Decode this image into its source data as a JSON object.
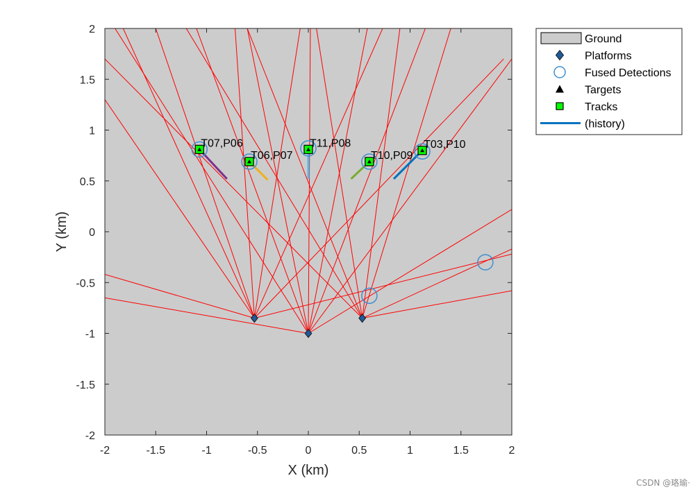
{
  "chart_data": {
    "type": "scatter",
    "title": "",
    "xlabel": "X (km)",
    "ylabel": "Y (km)",
    "xlim": [
      -2,
      2
    ],
    "ylim": [
      -2,
      2
    ],
    "xticks": [
      -2,
      -1.5,
      -1,
      -0.5,
      0,
      0.5,
      1,
      1.5,
      2
    ],
    "yticks": [
      -2,
      -1.5,
      -1,
      -0.5,
      0,
      0.5,
      1,
      1.5,
      2
    ],
    "grid": false,
    "legend_position": "outside-top-right",
    "colors": {
      "ground": "#cccccc",
      "rays": "#ff0000",
      "platform": "#1f5a99",
      "fused": "#3d8fd1",
      "track": "#00ff00",
      "target": "#000000"
    },
    "legend": [
      {
        "label": "Ground",
        "marker": "patch"
      },
      {
        "label": "Platforms",
        "marker": "diamond"
      },
      {
        "label": "Fused Detections",
        "marker": "circle"
      },
      {
        "label": "Targets",
        "marker": "triangle"
      },
      {
        "label": "Tracks",
        "marker": "square"
      },
      {
        "label": "(history)",
        "marker": "line"
      }
    ],
    "platforms": [
      {
        "x": -0.53,
        "y": -0.85
      },
      {
        "x": 0.0,
        "y": -1.0
      },
      {
        "x": 0.53,
        "y": -0.85
      }
    ],
    "rays": [
      {
        "from": [
          -0.53,
          -0.85
        ],
        "to": [
          -2.0,
          1.3
        ]
      },
      {
        "from": [
          -0.53,
          -0.85
        ],
        "to": [
          -1.82,
          2.0
        ]
      },
      {
        "from": [
          -0.53,
          -0.85
        ],
        "to": [
          -1.5,
          2.0
        ]
      },
      {
        "from": [
          -0.53,
          -0.85
        ],
        "to": [
          -0.72,
          2.0
        ]
      },
      {
        "from": [
          -0.53,
          -0.85
        ],
        "to": [
          -0.08,
          2.0
        ]
      },
      {
        "from": [
          -0.53,
          -0.85
        ],
        "to": [
          0.73,
          2.0
        ]
      },
      {
        "from": [
          -0.53,
          -0.85
        ],
        "to": [
          1.92,
          1.7
        ]
      },
      {
        "from": [
          -0.53,
          -0.85
        ],
        "to": [
          2.0,
          -0.22
        ]
      },
      {
        "from": [
          -0.53,
          -0.85
        ],
        "to": [
          -2.0,
          -0.42
        ]
      },
      {
        "from": [
          0.0,
          -1.0
        ],
        "to": [
          -1.9,
          2.0
        ]
      },
      {
        "from": [
          0.0,
          -1.0
        ],
        "to": [
          -1.1,
          2.0
        ]
      },
      {
        "from": [
          0.0,
          -1.0
        ],
        "to": [
          -0.6,
          2.0
        ]
      },
      {
        "from": [
          0.0,
          -1.0
        ],
        "to": [
          0.02,
          2.0
        ]
      },
      {
        "from": [
          0.0,
          -1.0
        ],
        "to": [
          0.58,
          2.0
        ]
      },
      {
        "from": [
          0.0,
          -1.0
        ],
        "to": [
          1.15,
          2.0
        ]
      },
      {
        "from": [
          0.0,
          -1.0
        ],
        "to": [
          2.0,
          1.7
        ]
      },
      {
        "from": [
          0.0,
          -1.0
        ],
        "to": [
          2.0,
          0.22
        ]
      },
      {
        "from": [
          0.0,
          -1.0
        ],
        "to": [
          -2.0,
          -0.65
        ]
      },
      {
        "from": [
          0.53,
          -0.85
        ],
        "to": [
          -2.0,
          1.7
        ]
      },
      {
        "from": [
          0.53,
          -0.85
        ],
        "to": [
          -1.2,
          2.0
        ]
      },
      {
        "from": [
          0.53,
          -0.85
        ],
        "to": [
          -0.6,
          2.0
        ]
      },
      {
        "from": [
          0.53,
          -0.85
        ],
        "to": [
          0.08,
          2.0
        ]
      },
      {
        "from": [
          0.53,
          -0.85
        ],
        "to": [
          0.9,
          2.0
        ]
      },
      {
        "from": [
          0.53,
          -0.85
        ],
        "to": [
          1.4,
          2.0
        ]
      },
      {
        "from": [
          0.53,
          -0.85
        ],
        "to": [
          2.0,
          -0.17
        ]
      },
      {
        "from": [
          0.53,
          -0.85
        ],
        "to": [
          2.0,
          -0.58
        ]
      }
    ],
    "fused_detections": [
      {
        "x": -1.07,
        "y": 0.81
      },
      {
        "x": -0.58,
        "y": 0.69
      },
      {
        "x": 0.0,
        "y": 0.82
      },
      {
        "x": 0.6,
        "y": 0.69
      },
      {
        "x": 1.12,
        "y": 0.79
      },
      {
        "x": 0.6,
        "y": -0.63
      },
      {
        "x": 1.74,
        "y": -0.3
      }
    ],
    "tracks": [
      {
        "label": "T07,P06",
        "x": -1.07,
        "y": 0.81,
        "history": [
          [
            -1.07,
            0.81
          ],
          [
            -0.8,
            0.52
          ]
        ],
        "history_color": "#7e2f8e"
      },
      {
        "label": "T06,P07",
        "x": -0.58,
        "y": 0.69,
        "history": [
          [
            -0.58,
            0.69
          ],
          [
            -0.4,
            0.51
          ]
        ],
        "history_color": "#edb120"
      },
      {
        "label": "T11,P08",
        "x": 0.0,
        "y": 0.81,
        "history": [
          [
            0.0,
            0.81
          ],
          [
            0.0,
            0.52
          ]
        ],
        "history_color": "#4dbeee"
      },
      {
        "label": "T10,P09",
        "x": 0.6,
        "y": 0.69,
        "history": [
          [
            0.6,
            0.69
          ],
          [
            0.42,
            0.52
          ]
        ],
        "history_color": "#77ac30"
      },
      {
        "label": "T03,P10",
        "x": 1.12,
        "y": 0.8,
        "history": [
          [
            1.12,
            0.8
          ],
          [
            0.84,
            0.52
          ]
        ],
        "history_color": "#0072bd"
      }
    ]
  },
  "watermark": "CSDN @珞瑜·"
}
